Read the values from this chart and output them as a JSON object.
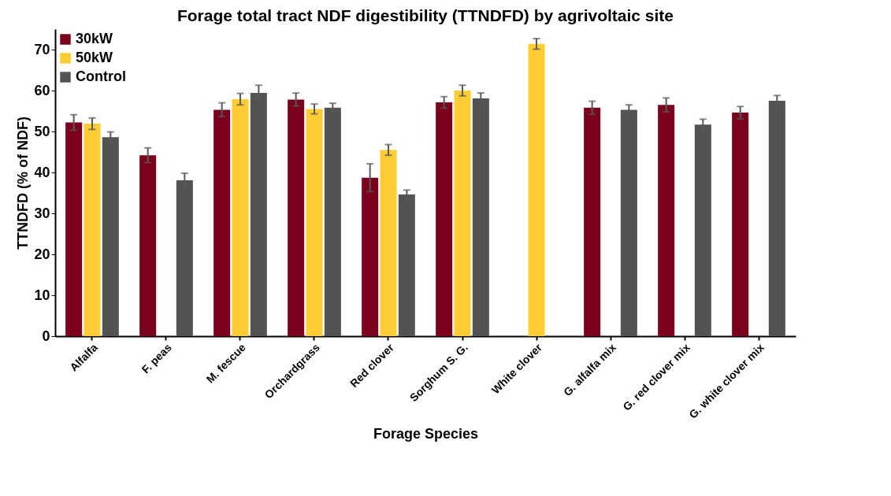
{
  "chart_data": {
    "type": "bar",
    "title": "Forage total tract NDF digestibility (TTNDFD) by agrivoltaic site",
    "xlabel": "Forage Species",
    "ylabel": "TTNDFD (% of NDF)",
    "categories": [
      "Alfalfa",
      "F. peas",
      "M. fescue",
      "Orchardgrass",
      "Red clover",
      "Sorghum S. G.",
      "White clover",
      "G. alfalfa mix",
      "G. red clover mix",
      "G. white clover mix"
    ],
    "series": [
      {
        "name": "30kW",
        "color": "#7b001c",
        "values": [
          52.2,
          44.2,
          55.3,
          57.8,
          38.7,
          57.1,
          null,
          55.8,
          56.5,
          54.6
        ],
        "errors": [
          1.9,
          1.8,
          1.7,
          1.6,
          3.4,
          1.4,
          null,
          1.6,
          1.7,
          1.5
        ]
      },
      {
        "name": "50kW",
        "color": "#ffcc33",
        "values": [
          51.9,
          null,
          57.9,
          55.5,
          45.5,
          60.0,
          71.4,
          null,
          null,
          null
        ],
        "errors": [
          1.4,
          null,
          1.4,
          1.2,
          1.3,
          1.3,
          1.3,
          null,
          null,
          null
        ]
      },
      {
        "name": "Control",
        "color": "#535353",
        "values": [
          48.6,
          38.1,
          59.4,
          55.8,
          34.6,
          58.1,
          null,
          55.3,
          51.7,
          57.5
        ],
        "errors": [
          1.3,
          1.7,
          1.9,
          1.1,
          1.1,
          1.3,
          null,
          1.2,
          1.3,
          1.3
        ]
      }
    ],
    "ylim": [
      0,
      75
    ],
    "yticks": [
      0,
      10,
      20,
      30,
      40,
      50,
      60,
      70
    ],
    "grid": false,
    "legend": "top left"
  }
}
